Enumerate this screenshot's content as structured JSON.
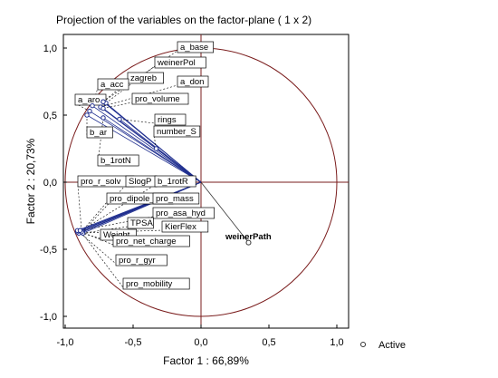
{
  "chart_data": {
    "type": "scatter",
    "title": "Projection of the variables on the factor-plane (  1 x   2)",
    "xlabel": "Factor 1 : 66,89%",
    "ylabel": "Factor 2 : 20,73%",
    "xlim": [
      -1.0,
      1.0
    ],
    "ylim": [
      -1.0,
      1.0
    ],
    "xticks": [
      "-1,0",
      "-0,5",
      "0,0",
      "0,5",
      "1,0"
    ],
    "yticks": [
      "1,0",
      "0,5",
      "0,0",
      "-0,5",
      "-1,0"
    ],
    "grid": false,
    "legend": {
      "position": "bottom-right",
      "entries": [
        "Active"
      ]
    },
    "colors": {
      "line": "#1f2e8f",
      "axis": "#7a1c1c",
      "circle": "#7a1c1c",
      "point": "#1f2e8f",
      "secondary_point": "#333333"
    },
    "points": [
      {
        "label": "a_base",
        "x": -0.72,
        "y": 0.6
      },
      {
        "label": "weinerPol",
        "x": -0.7,
        "y": 0.59
      },
      {
        "label": "zagreb",
        "x": -0.72,
        "y": 0.6
      },
      {
        "label": "a_don",
        "x": -0.74,
        "y": 0.56
      },
      {
        "label": "a_acc",
        "x": -0.8,
        "y": 0.57
      },
      {
        "label": "a_aro",
        "x": -0.82,
        "y": 0.53
      },
      {
        "label": "b_ar",
        "x": -0.84,
        "y": 0.5
      },
      {
        "label": "pro_volume",
        "x": -0.72,
        "y": 0.55
      },
      {
        "label": "rings",
        "x": -0.6,
        "y": 0.47
      },
      {
        "label": "number_S",
        "x": -0.33,
        "y": 0.25
      },
      {
        "label": "b_1rotN",
        "x": -0.72,
        "y": 0.48
      },
      {
        "label": "pro_r_solv",
        "x": -0.88,
        "y": -0.36
      },
      {
        "label": "SlogP",
        "x": -0.87,
        "y": -0.37
      },
      {
        "label": "b_1rotR",
        "x": -0.88,
        "y": -0.36
      },
      {
        "label": "pro_dipole_m",
        "x": -0.88,
        "y": -0.37
      },
      {
        "label": "pro_mass",
        "x": -0.88,
        "y": -0.37
      },
      {
        "label": "pro_asa_hyd",
        "x": -0.89,
        "y": -0.36
      },
      {
        "label": "TPSA",
        "x": -0.87,
        "y": -0.38
      },
      {
        "label": "KierFlex",
        "x": -0.9,
        "y": -0.38
      },
      {
        "label": "Weight",
        "x": -0.91,
        "y": -0.37
      },
      {
        "label": "pro_net_charge",
        "x": -0.88,
        "y": -0.37
      },
      {
        "label": "pro_r_gyr",
        "x": -0.91,
        "y": -0.36
      },
      {
        "label": "pro_mobility",
        "x": -0.89,
        "y": -0.36
      },
      {
        "label": "weinerPath",
        "x": 0.35,
        "y": -0.45
      }
    ]
  }
}
